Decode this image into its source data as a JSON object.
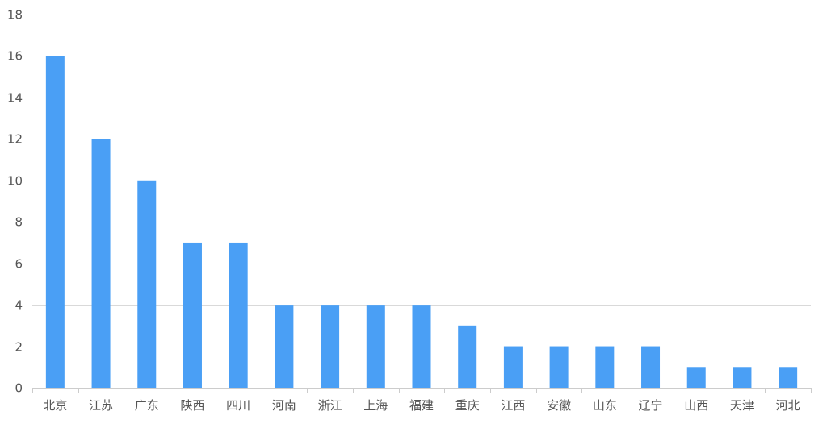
{
  "chart_data": {
    "type": "bar",
    "title": "",
    "xlabel": "",
    "ylabel": "",
    "categories": [
      "北京",
      "江苏",
      "广东",
      "陕西",
      "四川",
      "河南",
      "浙江",
      "上海",
      "福建",
      "重庆",
      "江西",
      "安徽",
      "山东",
      "辽宁",
      "山西",
      "天津",
      "河北"
    ],
    "values": [
      16,
      12,
      10,
      7,
      7,
      4,
      4,
      4,
      4,
      3,
      2,
      2,
      2,
      2,
      1,
      1,
      1
    ],
    "ylim": [
      0,
      18
    ],
    "yticks": [
      "0",
      "2",
      "4",
      "6",
      "8",
      "10",
      "12",
      "14",
      "16",
      "18"
    ],
    "grid": true,
    "legend": "none",
    "colors": {
      "bar": "#4a9ff5",
      "grid": "#d9d9d9",
      "axis": "#cccccc",
      "text": "#555555"
    }
  }
}
